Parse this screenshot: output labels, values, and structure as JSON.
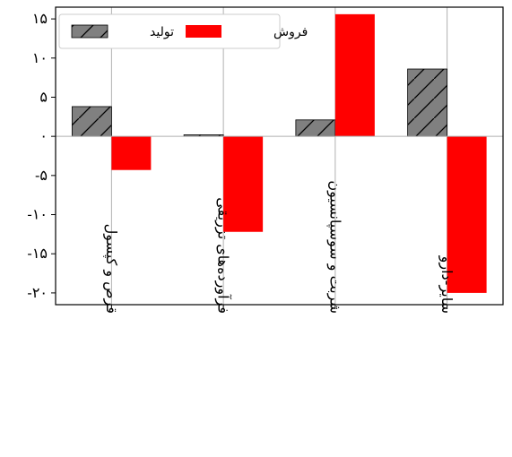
{
  "chart_data": {
    "type": "bar",
    "categories": [
      "قرص و کپسول",
      "فرآورده‌های تزریقی",
      "شربت و سوسپانسیون",
      "سایر-دارو"
    ],
    "series": [
      {
        "name": "تولید",
        "values": [
          3.8,
          0.2,
          2.1,
          8.6
        ],
        "color": "#808080",
        "hatch": "diagonal"
      },
      {
        "name": "فروش",
        "values": [
          -4.3,
          -12.2,
          15.6,
          -20.0
        ],
        "color": "#ff0000",
        "hatch": "none"
      }
    ],
    "yticks": [
      15,
      10,
      5,
      0,
      -5,
      -10,
      -15,
      -20
    ],
    "ytick_labels": [
      "۱۵",
      "۱۰",
      "۵",
      "۰",
      "-۵",
      "-۱۰",
      "-۱۵",
      "-۲۰"
    ],
    "ylim": [
      -21.5,
      16.5
    ],
    "grid": "vertical",
    "legend": "top-left"
  }
}
